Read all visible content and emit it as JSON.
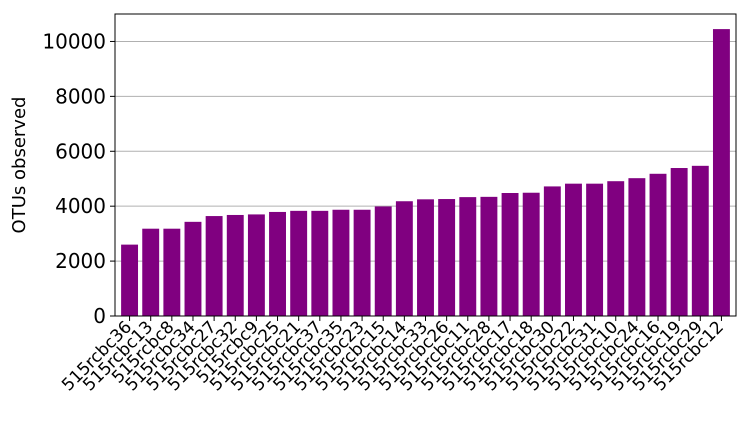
{
  "chart_data": {
    "type": "bar",
    "title": "",
    "xlabel": "",
    "ylabel": "OTUs observed",
    "ylim": [
      0,
      11000
    ],
    "yticks": [
      0,
      2000,
      4000,
      6000,
      8000,
      10000
    ],
    "grid": "y",
    "bar_color": "#800080",
    "categories": [
      "515rcbc36",
      "515rcbc13",
      "515rcbc8",
      "515rcbc34",
      "515rcbc27",
      "515rcbc32",
      "515rcbc9",
      "515rcbc25",
      "515rcbc21",
      "515rcbc37",
      "515rcbc35",
      "515rcbc23",
      "515rcbc15",
      "515rcbc14",
      "515rcbc33",
      "515rcbc26",
      "515rcbc11",
      "515rcbc28",
      "515rcbc17",
      "515rcbc18",
      "515rcbc30",
      "515rcbc22",
      "515rcbc31",
      "515rcbc10",
      "515rcbc24",
      "515rcbc16",
      "515rcbc19",
      "515rcbc29",
      "515rcbc12"
    ],
    "values": [
      2600,
      3180,
      3180,
      3430,
      3640,
      3680,
      3700,
      3790,
      3830,
      3830,
      3870,
      3870,
      3990,
      4180,
      4250,
      4260,
      4330,
      4340,
      4480,
      4490,
      4720,
      4820,
      4820,
      4910,
      5020,
      5180,
      5390,
      5470,
      10450
    ]
  }
}
